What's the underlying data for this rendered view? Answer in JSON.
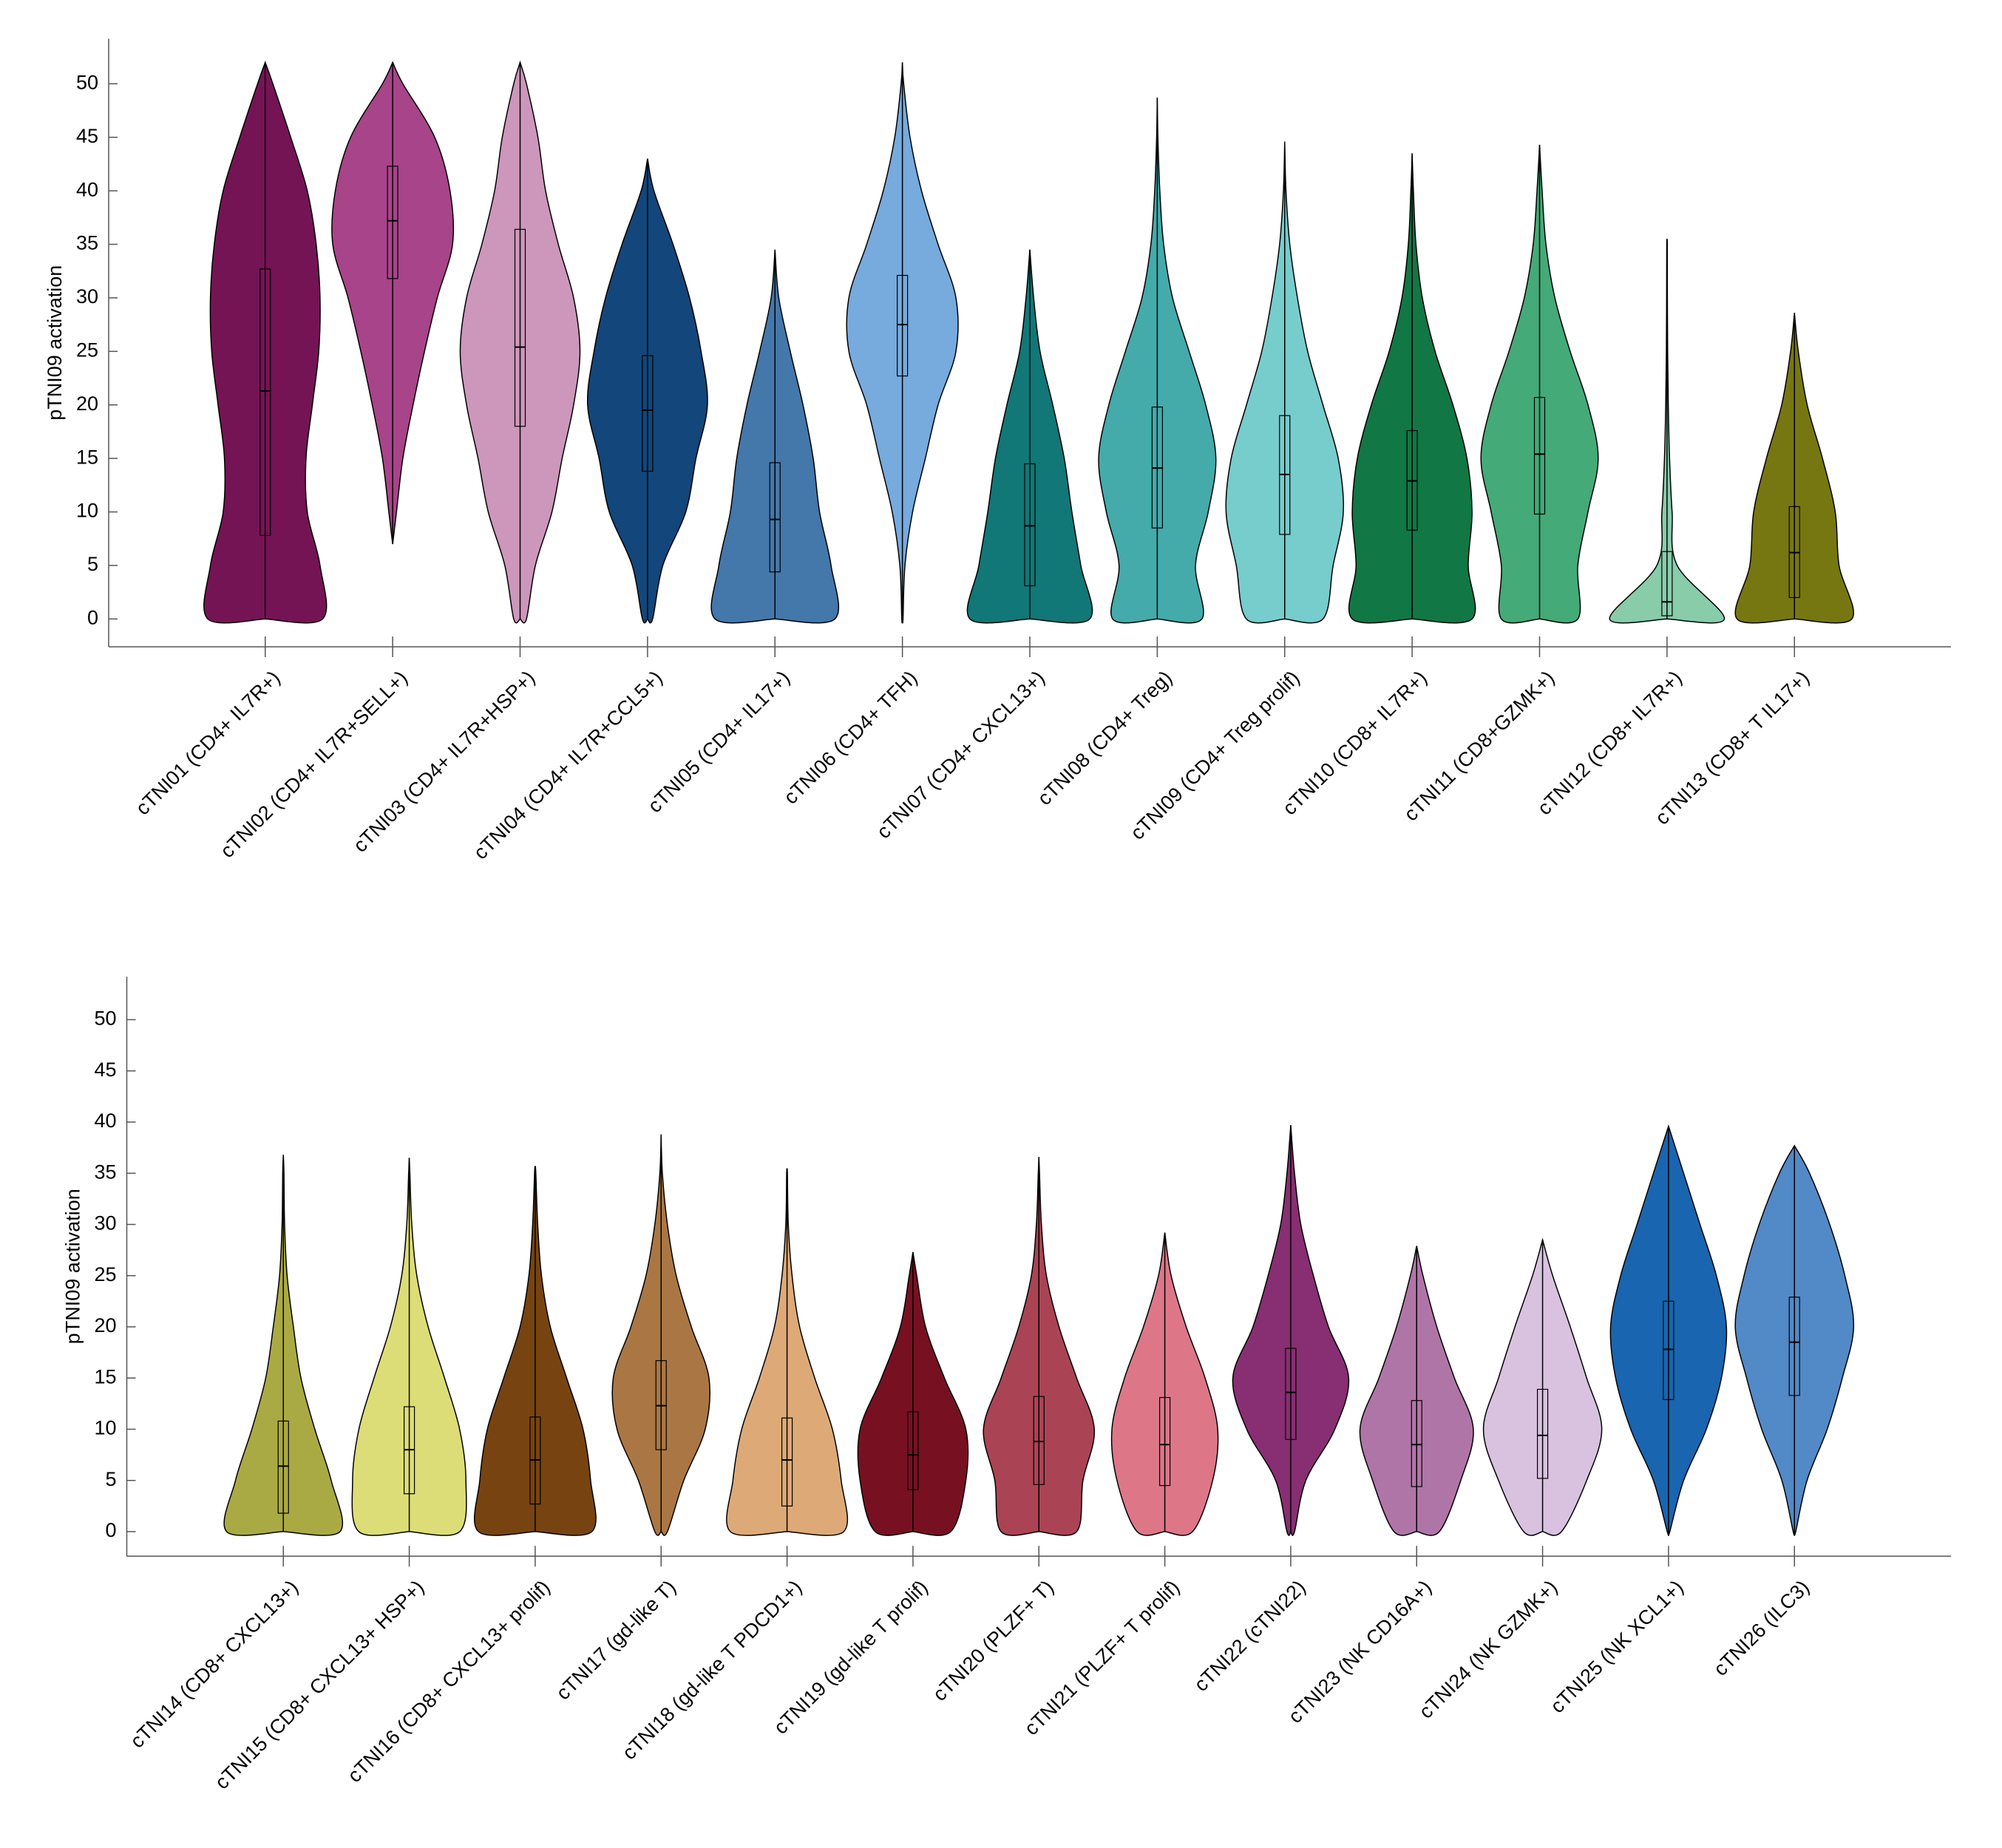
{
  "chart_data": [
    {
      "type": "violin",
      "ylabel": "pTNI09 activation",
      "categories": [
        "cTNI01 (CD4+ IL7R+)",
        "cTNI02 (CD4+ IL7R+SELL+)",
        "cTNI03 (CD4+ IL7R+HSP+)",
        "cTNI04 (CD4+ IL7R+CCL5+)",
        "cTNI05 (CD4+ IL17+)",
        "cTNI06 (CD4+ TFH)",
        "cTNI07 (CD4+ CXCL13+)",
        "cTNI08 (CD4+ Treg)",
        "cTNI09 (CD4+ Treg prolif)",
        "cTNI10 (CD8+ IL7R+)",
        "cTNI11 (CD8+GZMK+)",
        "cTNI12 (CD8+ IL7R+)",
        "cTNI13 (CD8+ T IL17+)"
      ],
      "colors": [
        "#741454",
        "#a84489",
        "#cc97ba",
        "#13467a",
        "#4477aa",
        "#77aadd",
        "#117777",
        "#44aaaa",
        "#77cccc",
        "#117744",
        "#44aa77",
        "#88ccaa",
        "#777711"
      ],
      "min": [
        0,
        7,
        0,
        0,
        0,
        0,
        0,
        0,
        0,
        0,
        0,
        0,
        0
      ],
      "q1": [
        7.8,
        31.8,
        18,
        13.8,
        4.4,
        22.7,
        3.1,
        8.5,
        7.9,
        8.3,
        9.8,
        0.3,
        2
      ],
      "median": [
        21.3,
        37.2,
        25.4,
        19.5,
        9.3,
        27.5,
        8.7,
        14.1,
        13.5,
        12.9,
        15.4,
        1.6,
        6.2
      ],
      "q3": [
        32.7,
        42.3,
        36.4,
        24.6,
        14.6,
        32.1,
        14.5,
        19.8,
        19,
        17.6,
        20.7,
        6.3,
        10.5
      ],
      "max": [
        52,
        52,
        52,
        43,
        34.5,
        52,
        34.5,
        48.7,
        44.6,
        43.5,
        44.3,
        35.3,
        28.6
      ],
      "density_levels": [
        0,
        5,
        10,
        15,
        20,
        25,
        30,
        35,
        40,
        45,
        50
      ],
      "density": [
        [
          45,
          43,
          33,
          32,
          37,
          42,
          43,
          40,
          33,
          20,
          6
        ],
        [
          null,
          null,
          3,
          8,
          16,
          25,
          35,
          47,
          45,
          33,
          8
        ],
        [
          5,
          12,
          25,
          33,
          42,
          47,
          42,
          30,
          20,
          14,
          5
        ],
        [
          4,
          12,
          30,
          38,
          47,
          42,
          33,
          20,
          5,
          null,
          null
        ],
        [
          47,
          44,
          35,
          30,
          22,
          12,
          3,
          null,
          null,
          null,
          null
        ],
        [
          0.5,
          2,
          8,
          18,
          28,
          42,
          42,
          28,
          15,
          6,
          1
        ],
        [
          47,
          40,
          33,
          27,
          18,
          8,
          3,
          null,
          null,
          null,
          null
        ],
        [
          35,
          30,
          40,
          46,
          38,
          25,
          12,
          5,
          2,
          0.5,
          null
        ],
        [
          30,
          38,
          46,
          42,
          30,
          18,
          10,
          4,
          1,
          null,
          null
        ],
        [
          47,
          44,
          47,
          43,
          32,
          18,
          8,
          3,
          1,
          null,
          null
        ],
        [
          30,
          30,
          38,
          46,
          38,
          24,
          12,
          5,
          2,
          null,
          null
        ],
        [
          45,
          8,
          4,
          2,
          1,
          0.5,
          0.3,
          0.2,
          null,
          null,
          null
        ],
        [
          45,
          35,
          32,
          22,
          10,
          3,
          null,
          null,
          null,
          null,
          null
        ]
      ],
      "ylim": [
        -2.6,
        54.2
      ],
      "yticks": [
        0,
        5,
        10,
        15,
        20,
        25,
        30,
        35,
        40,
        45,
        50
      ]
    },
    {
      "type": "violin",
      "ylabel": "pTNI09 activation",
      "categories": [
        "cTNI14 (CD8+ CXCL13+)",
        "cTNI15 (CD8+ CXCL13+ HSP+)",
        "cTNI16 (CD8+ CXCL13+ prolif)",
        "cTNI17 (gd-like T)",
        "cTNI18 (gd-like T PDCD1+)",
        "cTNI19 (gd-like T prolif)",
        "cTNI20 (PLZF+ T)",
        "cTNI21 (PLZF+ T prolif)",
        "cTNI22 (cTNI22)",
        "cTNI23 (NK CD16A+)",
        "cTNI24 (NK GZMK+)",
        "cTNI25 (NK XCL1+)",
        "cTNI26 (ILC3)"
      ],
      "colors": [
        "#aaaa44",
        "#dddd77",
        "#774411",
        "#aa7744",
        "#ddaa77",
        "#771122",
        "#aa4455",
        "#dd7788",
        "#882e72",
        "#b075a7",
        "#d8c2e0",
        "#1965b0",
        "#5289c7"
      ],
      "min": [
        0,
        0,
        0,
        0,
        0,
        0,
        0,
        0,
        0,
        0,
        0,
        0,
        0
      ],
      "q1": [
        1.8,
        3.7,
        2.7,
        8,
        2.5,
        4.1,
        4.6,
        4.5,
        9,
        4.4,
        5.2,
        12.9,
        13.3
      ],
      "median": [
        6.4,
        8,
        7,
        12.3,
        7,
        7.5,
        8.8,
        8.5,
        13.6,
        8.5,
        9.4,
        17.8,
        18.5
      ],
      "q3": [
        10.8,
        12.2,
        11.2,
        16.7,
        11.1,
        11.7,
        13.2,
        13.1,
        17.9,
        12.8,
        13.9,
        22.5,
        22.9
      ],
      "max": [
        36.8,
        36.5,
        35.7,
        38.8,
        35.2,
        27.3,
        36.6,
        29.2,
        39.7,
        27.9,
        28.5,
        39.6,
        37.7
      ],
      "density_levels": [
        0,
        5,
        10,
        15,
        20,
        25,
        30,
        35,
        40,
        45,
        50
      ],
      "density": [
        [
          45,
          38,
          25,
          14,
          8,
          3,
          1,
          0.5,
          null,
          null,
          null
        ],
        [
          40,
          45,
          40,
          28,
          15,
          6,
          2,
          0.5,
          null,
          null,
          null
        ],
        [
          45,
          44,
          38,
          25,
          12,
          5,
          2,
          0.5,
          null,
          null,
          null
        ],
        [
          5,
          18,
          35,
          38,
          24,
          12,
          5,
          1,
          null,
          null,
          null
        ],
        [
          45,
          43,
          36,
          22,
          10,
          4,
          1,
          0.3,
          null,
          null,
          null
        ],
        [
          30,
          42,
          42,
          25,
          10,
          3,
          null,
          null,
          null,
          null,
          null
        ],
        [
          30,
          35,
          44,
          30,
          16,
          6,
          2,
          0.5,
          null,
          null,
          null
        ],
        [
          22,
          38,
          42,
          32,
          17,
          5,
          null,
          null,
          null,
          null,
          null
        ],
        [
          3,
          12,
          35,
          46,
          30,
          18,
          8,
          3,
          null,
          null,
          null
        ],
        [
          18,
          35,
          45,
          30,
          16,
          5,
          null,
          null,
          null,
          null,
          null
        ],
        [
          15,
          35,
          47,
          35,
          22,
          8,
          null,
          null,
          null,
          null,
          null
        ],
        [
          1,
          12,
          30,
          42,
          46,
          38,
          25,
          12,
          null,
          null,
          null
        ],
        [
          1,
          10,
          26,
          38,
          47,
          40,
          28,
          12,
          null,
          null,
          null
        ]
      ],
      "ylim": [
        -2.4,
        54.2
      ],
      "yticks": [
        0,
        5,
        10,
        15,
        20,
        25,
        30,
        35,
        40,
        45,
        50
      ]
    }
  ]
}
